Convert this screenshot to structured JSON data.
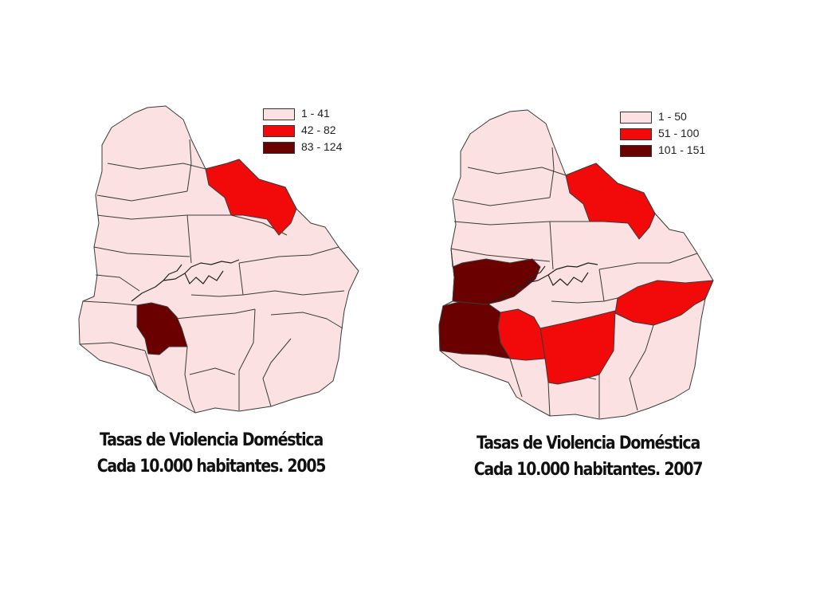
{
  "colors": {
    "low": "#fbe1e1",
    "mid": "#f20a0a",
    "high": "#6b0000",
    "border": "#3a3a3a"
  },
  "maps": [
    {
      "legend": [
        {
          "label": "1 - 41",
          "class": "low"
        },
        {
          "label": "42 - 82",
          "class": "mid"
        },
        {
          "label": "83 - 124",
          "class": "high"
        }
      ],
      "caption": {
        "line1": "Tasas de Violencia Doméstica",
        "line2": "Cada 10.000 habitantes. 2005"
      }
    },
    {
      "legend": [
        {
          "label": "1 - 50",
          "class": "low"
        },
        {
          "label": "51 - 100",
          "class": "mid"
        },
        {
          "label": "101 - 151",
          "class": "high"
        }
      ],
      "caption": {
        "line1": "Tasas de Violencia Doméstica",
        "line2": "Cada 10.000 habitantes. 2007"
      }
    }
  ]
}
